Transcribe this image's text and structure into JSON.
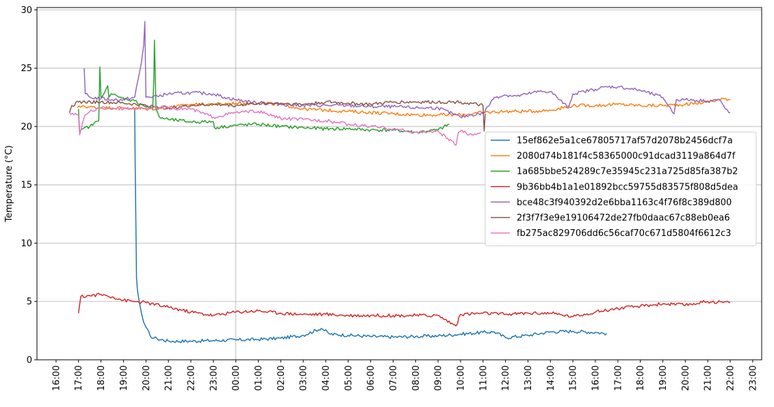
{
  "chart_data": {
    "type": "line",
    "title": "",
    "xlabel": "",
    "ylabel": "Temperature (°C)",
    "ylim": [
      0,
      30.2
    ],
    "yticks": [
      0,
      5,
      10,
      15,
      20,
      25,
      30
    ],
    "x_unit": "hours since 16:00 (day 1)",
    "xlim": [
      -0.85,
      31.4
    ],
    "xtick_labels": [
      "16:00",
      "17:00",
      "18:00",
      "19:00",
      "20:00",
      "21:00",
      "22:00",
      "23:00",
      "00:00",
      "01:00",
      "02:00",
      "03:00",
      "04:00",
      "05:00",
      "06:00",
      "07:00",
      "08:00",
      "09:00",
      "10:00",
      "11:00",
      "12:00",
      "13:00",
      "14:00",
      "15:00",
      "16:00",
      "17:00",
      "18:00",
      "19:00",
      "20:00",
      "21:00",
      "22:00",
      "23:00"
    ],
    "grid": true,
    "grid_lines": {
      "vertical_hours": [
        8
      ],
      "horizontal": [
        5,
        10,
        15,
        20,
        25,
        30
      ]
    },
    "legend_position": "center-right",
    "series": [
      {
        "name": "15ef862e5a1ce67805717af57d2078b2456dcf7a",
        "color": "#1f77b4",
        "x": [
          3.5,
          3.52,
          3.55,
          3.58,
          3.62,
          3.7,
          3.8,
          3.9,
          4.0,
          4.2,
          4.5,
          5.0,
          6.0,
          7.0,
          8.0,
          9.0,
          10.0,
          11.0,
          11.8,
          12.2,
          13.0,
          14.0,
          15.0,
          16.0,
          17.0,
          18.0,
          19.0,
          19.5,
          20.0,
          21.0,
          22.0,
          23.0,
          24.0,
          24.5
        ],
        "y": [
          21.5,
          17.0,
          12.0,
          7.0,
          6.0,
          5.0,
          4.0,
          3.2,
          2.8,
          2.0,
          1.8,
          1.6,
          1.6,
          1.65,
          1.7,
          1.75,
          1.85,
          2.1,
          2.7,
          2.2,
          2.1,
          2.0,
          1.95,
          2.0,
          2.05,
          2.2,
          2.35,
          2.4,
          1.9,
          2.1,
          2.4,
          2.45,
          2.35,
          2.25
        ]
      },
      {
        "name": "2080d74b181f4c58365000c91dcad3119a864d7f",
        "color": "#ff7f0e",
        "x": [
          0.95,
          1.2,
          1.3,
          2.0,
          3.0,
          4.0,
          5.0,
          6.0,
          7.0,
          8.0,
          9.0,
          10.0,
          11.0,
          12.0,
          13.0,
          14.0,
          15.0,
          16.0,
          17.0,
          18.0,
          19.0,
          20.0,
          21.0,
          22.0,
          23.0,
          24.0,
          25.0,
          26.0,
          27.0,
          28.0,
          29.0,
          29.8,
          30.0
        ],
        "y": [
          21.6,
          21.8,
          21.7,
          21.6,
          21.6,
          21.5,
          21.6,
          21.9,
          21.9,
          22.0,
          22.0,
          21.9,
          21.5,
          21.4,
          21.3,
          21.2,
          21.1,
          21.0,
          21.0,
          21.0,
          21.2,
          21.3,
          21.3,
          21.4,
          21.8,
          21.8,
          21.9,
          21.8,
          21.8,
          21.9,
          22.1,
          22.4,
          22.3
        ]
      },
      {
        "name": "1a685bbe524289c7e35945c231a725d85fa387b2",
        "color": "#2ca02c",
        "x": [
          1.0,
          1.05,
          1.2,
          1.5,
          1.9,
          1.95,
          2.0,
          2.3,
          2.35,
          2.45,
          2.8,
          3.5,
          4.0,
          4.3,
          4.35,
          4.38,
          4.45,
          4.6,
          5.0,
          6.0,
          7.0,
          7.05,
          8.0,
          9.0,
          10.0,
          11.0,
          12.0,
          13.0,
          14.0,
          15.0,
          16.0,
          16.5,
          17.0,
          17.5
        ],
        "y": [
          21.5,
          19.5,
          19.8,
          20.0,
          20.5,
          25.1,
          22.5,
          23.5,
          22.5,
          22.8,
          22.5,
          22.2,
          21.7,
          21.5,
          24.0,
          27.4,
          21.5,
          20.8,
          20.6,
          20.4,
          20.4,
          19.9,
          20.1,
          20.2,
          20.0,
          19.9,
          19.8,
          19.8,
          19.7,
          19.7,
          19.5,
          19.6,
          19.7,
          20.2
        ]
      },
      {
        "name": "9b36bb4b1a1e01892bcc59755d83575f808d5dea",
        "color": "#d62728",
        "x": [
          1.0,
          1.1,
          1.5,
          2.0,
          2.5,
          3.0,
          3.5,
          4.0,
          5.0,
          6.0,
          7.0,
          8.0,
          9.0,
          10.0,
          11.0,
          12.0,
          13.0,
          14.0,
          15.0,
          16.0,
          17.0,
          17.8,
          18.0,
          19.0,
          20.0,
          21.0,
          22.0,
          23.0,
          24.0,
          25.0,
          26.0,
          27.0,
          28.0,
          29.0,
          30.0
        ],
        "y": [
          4.0,
          5.4,
          5.5,
          5.6,
          5.4,
          5.1,
          5.0,
          4.9,
          4.5,
          4.1,
          3.8,
          4.1,
          4.2,
          4.0,
          3.9,
          3.9,
          3.8,
          3.8,
          3.8,
          3.8,
          3.8,
          2.9,
          3.9,
          4.0,
          3.9,
          4.0,
          4.0,
          3.7,
          4.1,
          4.4,
          4.6,
          4.8,
          4.7,
          5.0,
          4.9
        ]
      },
      {
        "name": "bce48c3f940392d2e6bba1163c4f76f8c389d800",
        "color": "#9467bd",
        "x": [
          1.25,
          1.3,
          1.5,
          2.0,
          2.5,
          3.0,
          3.5,
          3.8,
          3.9,
          3.95,
          4.0,
          4.5,
          5.0,
          6.0,
          7.0,
          7.5,
          8.0,
          9.0,
          10.0,
          11.0,
          12.0,
          13.0,
          14.0,
          15.0,
          16.0,
          17.0,
          18.0,
          18.5,
          19.0,
          19.5,
          20.0,
          20.5,
          21.0,
          21.5,
          22.0,
          22.8,
          23.0,
          23.5,
          24.0,
          24.5,
          25.0,
          26.0,
          27.0,
          27.5,
          27.6,
          28.0,
          29.0,
          29.5,
          29.8,
          30.0
        ],
        "y": [
          25.0,
          22.8,
          22.5,
          22.4,
          22.3,
          22.3,
          22.5,
          25.5,
          27.0,
          29.0,
          22.5,
          22.6,
          22.8,
          22.9,
          22.8,
          22.5,
          22.3,
          22.0,
          21.9,
          21.8,
          21.8,
          21.8,
          21.7,
          21.7,
          21.6,
          21.6,
          20.8,
          21.0,
          21.1,
          22.5,
          22.7,
          22.6,
          22.8,
          23.0,
          23.0,
          21.6,
          22.8,
          23.0,
          23.2,
          23.4,
          23.4,
          23.1,
          22.5,
          21.1,
          22.3,
          22.3,
          22.2,
          22.3,
          21.5,
          21.2
        ]
      },
      {
        "name": "2f3f7f3e9e19106472de27fb0daac67c88eb0ea6",
        "color": "#8c564b",
        "x": [
          0.6,
          0.7,
          1.0,
          2.0,
          3.0,
          4.0,
          5.0,
          6.0,
          7.0,
          8.0,
          9.0,
          10.0,
          11.0,
          12.0,
          13.0,
          14.0,
          15.0,
          16.0,
          17.0,
          18.0,
          19.0,
          19.05,
          19.1
        ],
        "y": [
          21.2,
          21.8,
          22.1,
          22.1,
          22.0,
          21.8,
          21.6,
          21.8,
          21.9,
          21.8,
          22.0,
          22.0,
          21.9,
          22.1,
          22.0,
          21.9,
          22.1,
          22.1,
          22.1,
          22.1,
          21.8,
          19.6,
          21.1
        ]
      },
      {
        "name": "fb275ac829706dd6c56caf70c671d5804f6612c3",
        "color": "#e377c2",
        "x": [
          0.6,
          1.0,
          1.05,
          1.3,
          1.5,
          2.0,
          2.5,
          3.0,
          4.0,
          5.0,
          6.0,
          7.0,
          8.0,
          9.0,
          10.0,
          11.0,
          12.0,
          13.0,
          14.0,
          15.0,
          16.0,
          17.0,
          17.8,
          17.9,
          18.0,
          18.5,
          18.9
        ],
        "y": [
          21.2,
          21.0,
          19.3,
          21.0,
          21.3,
          21.6,
          21.6,
          21.5,
          21.6,
          21.6,
          21.5,
          20.8,
          21.2,
          21.3,
          20.7,
          20.6,
          20.5,
          20.2,
          20.0,
          19.8,
          19.5,
          19.6,
          18.4,
          19.5,
          19.6,
          19.3,
          19.5
        ]
      }
    ]
  }
}
